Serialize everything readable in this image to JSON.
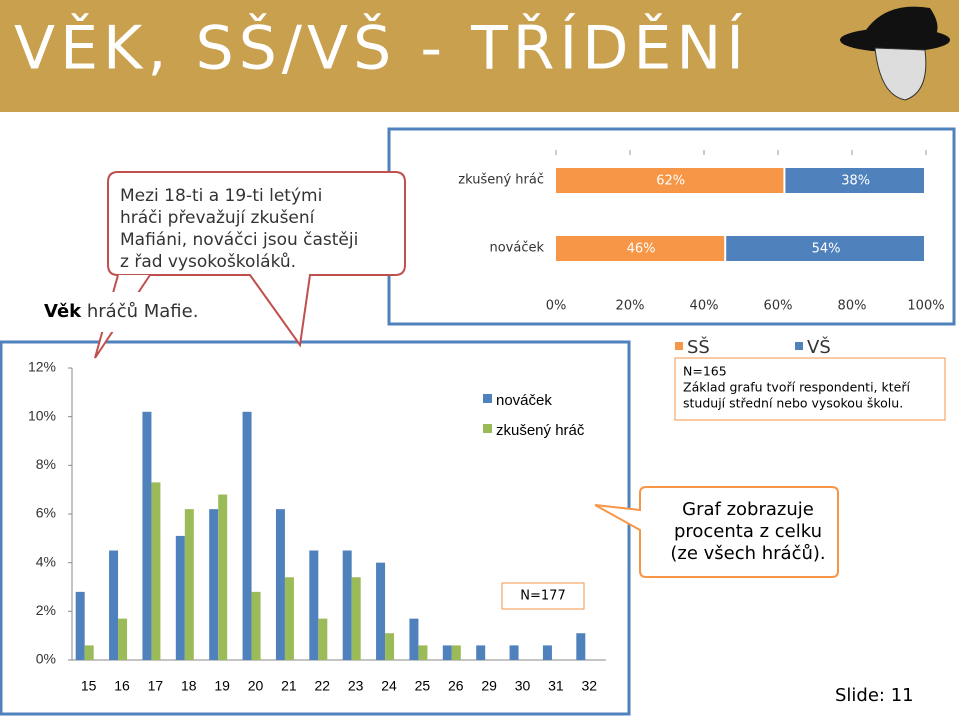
{
  "slide": {
    "title": "VĚK, SŠ/VŠ - TŘÍDĚNÍ",
    "callout_top": [
      "Mezi 18-ti a 19-ti letými",
      "hráči převažují zkušení",
      "Mafiáni, nováčci jsou častěji",
      "z řad vysokoškoláků."
    ],
    "age_label_bold": "Věk",
    "age_label_rest": "hráčů Mafie.",
    "callout_bottom": [
      "Graf zobrazuje",
      "procenta z celku",
      "(ze všech hráčů)."
    ],
    "slide_number": "Slide: 11"
  },
  "chart_data": [
    {
      "type": "hbar",
      "categories": [
        "zkušený hráč",
        "nováček"
      ],
      "series": [
        {
          "name": "SŠ",
          "color": "#f79646",
          "values": [
            62,
            46
          ],
          "value_labels": [
            "62%",
            "46%"
          ]
        },
        {
          "name": "VŠ",
          "color": "#4f81bd",
          "values": [
            38,
            54
          ],
          "value_labels": [
            "38%",
            "54%"
          ]
        }
      ],
      "xlim": [
        0,
        100
      ],
      "xticks": [
        {
          "value": 0,
          "label": "0%"
        },
        {
          "value": 20,
          "label": "20%"
        },
        {
          "value": 40,
          "label": "40%"
        },
        {
          "value": 60,
          "label": "60%"
        },
        {
          "value": 80,
          "label": "80%"
        },
        {
          "value": 100,
          "label": "100%"
        }
      ],
      "annotations": [
        "N=165",
        "Základ grafu tvoří respondenti, kteří",
        "studují střední nebo vysokou školu."
      ]
    },
    {
      "type": "bar",
      "categories": [
        "15",
        "16",
        "17",
        "18",
        "19",
        "20",
        "21",
        "22",
        "23",
        "24",
        "25",
        "26",
        "29",
        "30",
        "31",
        "32"
      ],
      "series": [
        {
          "name": "nováček",
          "color": "#4f81bd",
          "values": [
            2.8,
            4.5,
            10.2,
            5.1,
            6.2,
            10.2,
            6.2,
            4.5,
            4.5,
            4.0,
            1.7,
            0.6,
            0.6,
            0.6,
            0.6,
            1.1
          ]
        },
        {
          "name": "zkušený hráč",
          "color": "#9bbb59",
          "values": [
            0.6,
            1.7,
            7.3,
            6.2,
            6.8,
            2.8,
            3.4,
            1.7,
            3.4,
            1.1,
            0.6,
            0.6,
            0,
            0,
            0,
            0
          ]
        }
      ],
      "ylim": [
        0,
        12
      ],
      "yticks": [
        {
          "value": 0,
          "label": "0%"
        },
        {
          "value": 2,
          "label": "2%"
        },
        {
          "value": 4,
          "label": "4%"
        },
        {
          "value": 6,
          "label": "6%"
        },
        {
          "value": 8,
          "label": "8%"
        },
        {
          "value": 10,
          "label": "10%"
        },
        {
          "value": 12,
          "label": "12%"
        }
      ],
      "annotations": [
        "N=177"
      ]
    }
  ]
}
